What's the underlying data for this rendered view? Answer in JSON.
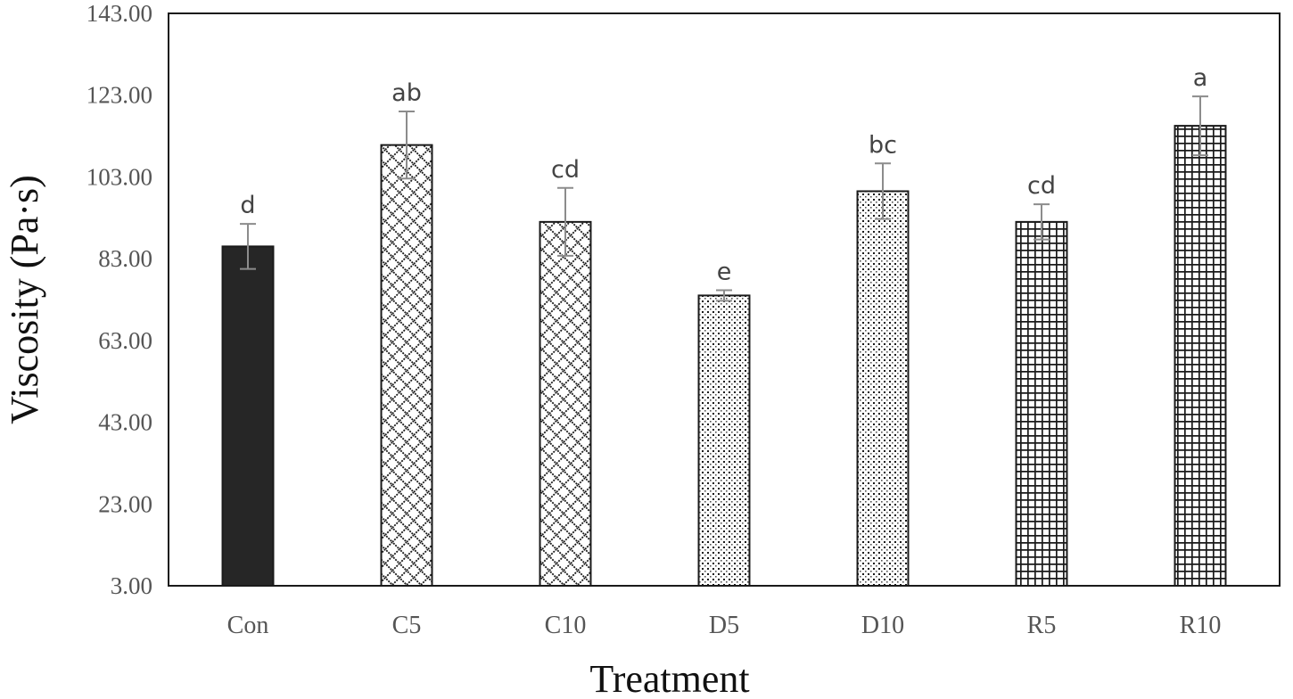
{
  "chart_data": {
    "type": "bar",
    "title": "",
    "xlabel": "Treatment",
    "ylabel": "Viscosity (Pa·s)",
    "ylim": [
      3.0,
      143.0
    ],
    "yticks": [
      "3.00",
      "23.00",
      "43.00",
      "63.00",
      "83.00",
      "103.00",
      "123.00",
      "143.00"
    ],
    "ytick_values": [
      3,
      23,
      43,
      63,
      83,
      103,
      123,
      143
    ],
    "categories": [
      "Con",
      "C5",
      "C10",
      "D5",
      "D10",
      "R5",
      "R10"
    ],
    "values": [
      86.0,
      110.8,
      92.0,
      74.0,
      99.5,
      92.0,
      115.5
    ],
    "errors": [
      5.5,
      8.2,
      8.3,
      1.3,
      6.8,
      4.3,
      7.2
    ],
    "significance": [
      "d",
      "ab",
      "cd",
      "e",
      "bc",
      "cd",
      "a"
    ],
    "patterns": [
      "solid",
      "diamond",
      "diamond",
      "dots",
      "dots",
      "grid",
      "grid"
    ],
    "grid": false,
    "legend": "none",
    "colors": {
      "bar_fill": "#262626",
      "bar_stroke": "#1a1a1a",
      "error_bar": "#8c8c8c",
      "axis": "#1a1a1a"
    }
  }
}
